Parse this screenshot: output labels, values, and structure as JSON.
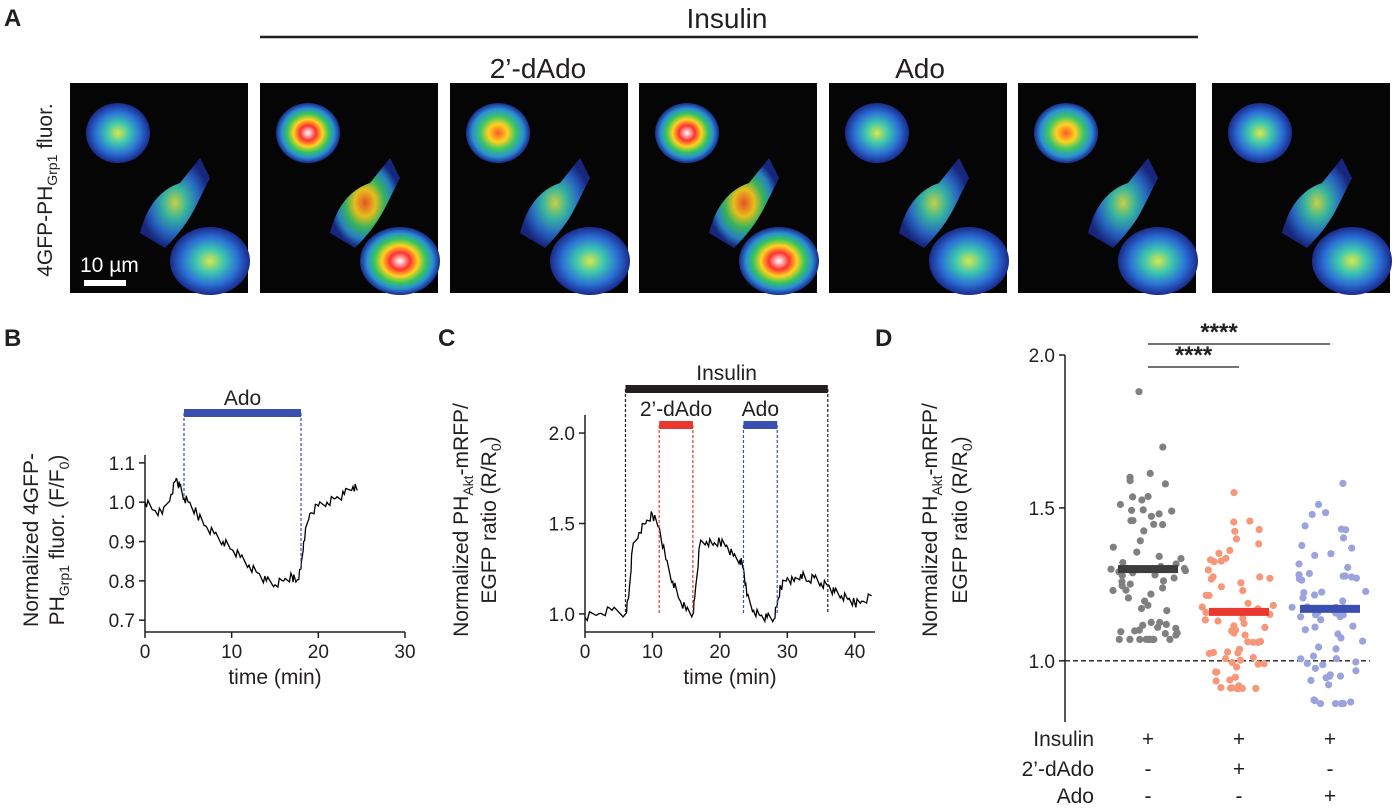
{
  "panel_letters": {
    "a": "A",
    "b": "B",
    "c": "C",
    "d": "D"
  },
  "panel_a": {
    "top_label": "Insulin",
    "sub_labels": [
      "2’-dAdo",
      "Ado"
    ],
    "y_label_main": "4GFP-PH",
    "y_label_sub": "Grp1",
    "y_label_tail": " fluor.",
    "scale_bar": "10 µm",
    "image_count": 7,
    "image_intensity": [
      0.45,
      1.0,
      0.62,
      0.85,
      0.55,
      0.8,
      0.5
    ]
  },
  "chart_data": [
    {
      "type": "line",
      "panel": "B",
      "ylabel_line1": "Normalized 4GFP-",
      "ylabel_line2_main": "PH",
      "ylabel_line2_sub": "Grp1",
      "ylabel_line2_tail": " fluor. (F/F",
      "ylabel_line2_sub2": "0",
      "ylabel_line2_end": ")",
      "xlabel": "time (min)",
      "xlim": [
        0,
        30
      ],
      "ylim": [
        0.67,
        1.12
      ],
      "x_ticks": [
        "0",
        "10",
        "20",
        "30"
      ],
      "y_ticks": [
        "0.7",
        "0.8",
        "0.9",
        "1.0",
        "1.1"
      ],
      "x_tick_values": [
        0,
        10,
        20,
        30
      ],
      "y_tick_values": [
        0.7,
        0.8,
        0.9,
        1.0,
        1.1
      ],
      "bars": [
        {
          "label": "Ado",
          "start": 4.5,
          "end": 18,
          "color": "#3a4fb0"
        }
      ],
      "series": [
        {
          "x": [
            0,
            1,
            2,
            3,
            3.6,
            4,
            4.5,
            5,
            6,
            7,
            8,
            9,
            10,
            11,
            12,
            13,
            14,
            15,
            16,
            17,
            17.5,
            18,
            18.3,
            19,
            20,
            21,
            22,
            23,
            24,
            24.5
          ],
          "y": [
            1.0,
            0.98,
            0.97,
            1.02,
            1.06,
            1.04,
            1.01,
            1.0,
            0.97,
            0.94,
            0.92,
            0.9,
            0.88,
            0.86,
            0.84,
            0.82,
            0.8,
            0.79,
            0.8,
            0.81,
            0.8,
            0.83,
            0.9,
            0.97,
            0.99,
            1.0,
            1.01,
            1.02,
            1.04,
            1.03
          ],
          "color": "#000000"
        }
      ]
    },
    {
      "type": "line",
      "panel": "C",
      "ylabel_line1_main": "Normalized PH",
      "ylabel_line1_sub": "Akt",
      "ylabel_line1_tail": "-mRFP/",
      "ylabel_line2": "EGFP ratio (R/R",
      "ylabel_line2_sub": "0",
      "ylabel_line2_end": ")",
      "xlabel": "time (min)",
      "xlim": [
        0,
        43
      ],
      "ylim": [
        0.9,
        2.1
      ],
      "x_ticks": [
        "0",
        "10",
        "20",
        "30",
        "40"
      ],
      "y_ticks": [
        "1.0",
        "1.5",
        "2.0"
      ],
      "x_tick_values": [
        0,
        10,
        20,
        30,
        40
      ],
      "y_tick_values": [
        1.0,
        1.5,
        2.0
      ],
      "bars": [
        {
          "label": "Insulin",
          "start": 6,
          "end": 36,
          "color": "#231f20"
        },
        {
          "label": "2’-dAdo",
          "start": 11,
          "end": 16,
          "color": "#e8382f"
        },
        {
          "label": "Ado",
          "start": 23.5,
          "end": 28.5,
          "color": "#3a4fb0"
        }
      ],
      "series": [
        {
          "x": [
            0,
            2,
            4,
            6,
            6.5,
            7,
            8,
            9,
            10,
            11,
            12,
            13,
            14,
            15,
            16,
            16.3,
            17,
            18,
            19,
            20,
            21,
            22,
            23,
            23.5,
            24,
            25,
            26,
            27,
            28,
            28.5,
            29,
            30,
            31,
            32,
            33,
            34,
            35,
            36,
            37,
            38,
            39,
            40,
            41,
            42.5
          ],
          "y": [
            0.98,
            1.0,
            1.02,
            1.0,
            1.1,
            1.35,
            1.45,
            1.5,
            1.55,
            1.48,
            1.3,
            1.18,
            1.08,
            1.02,
            1.0,
            1.1,
            1.38,
            1.4,
            1.38,
            1.4,
            1.38,
            1.32,
            1.3,
            1.25,
            1.1,
            1.02,
            0.99,
            0.98,
            0.97,
            1.05,
            1.15,
            1.2,
            1.18,
            1.22,
            1.18,
            1.2,
            1.17,
            1.16,
            1.12,
            1.1,
            1.08,
            1.06,
            1.07,
            1.1
          ],
          "color": "#000000"
        }
      ]
    },
    {
      "type": "scatter",
      "panel": "D",
      "ylabel_line1_main": "Normalized PH",
      "ylabel_line1_sub": "Akt",
      "ylabel_line1_tail": "-mRFP/",
      "ylabel_line2": "EGFP ratio (R/R",
      "ylabel_line2_sub": "0",
      "ylabel_line2_end": ")",
      "ylim": [
        0.8,
        2.0
      ],
      "y_ticks": [
        "1.0",
        "1.5",
        "2.0"
      ],
      "y_tick_values": [
        1.0,
        1.5,
        2.0
      ],
      "reference_line": 1.0,
      "groups": [
        {
          "name": "Insulin",
          "mean": 1.3,
          "min": 1.07,
          "max": 1.88,
          "n": 72,
          "color": "#808080",
          "mean_color": "#3d3d3d"
        },
        {
          "name": "2’-dAdo",
          "mean": 1.16,
          "min": 0.91,
          "max": 1.55,
          "n": 70,
          "color": "#f59778",
          "mean_color": "#e8382f"
        },
        {
          "name": "Ado",
          "mean": 1.17,
          "min": 0.86,
          "max": 1.58,
          "n": 70,
          "color": "#9aa3dc",
          "mean_color": "#3a4fb0"
        }
      ],
      "significance": [
        {
          "from": 0,
          "to": 1,
          "label": "****"
        },
        {
          "from": 0,
          "to": 2,
          "label": "****"
        }
      ],
      "condition_table": {
        "rows": [
          {
            "label": "Insulin",
            "values": [
              "+",
              "+",
              "+"
            ]
          },
          {
            "label": "2’-dAdo",
            "values": [
              "-",
              "+",
              "-"
            ]
          },
          {
            "label": "Ado",
            "values": [
              "-",
              "-",
              "+"
            ]
          }
        ]
      }
    }
  ]
}
